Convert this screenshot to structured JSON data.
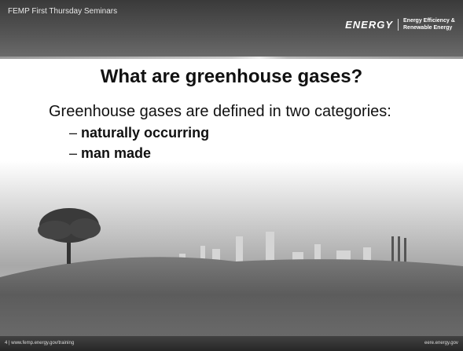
{
  "header": {
    "series_title": "FEMP First Thursday Seminars",
    "logo_main": "ENERGY",
    "logo_sub": "Energy Efficiency & Renewable Energy"
  },
  "slide": {
    "title": "What are greenhouse gases?",
    "body": "Greenhouse gases are defined in two categories:",
    "bullets": [
      {
        "marker": "–",
        "text": "naturally occurring"
      },
      {
        "marker": "–",
        "text": "man made"
      }
    ]
  },
  "footer": {
    "left": "4 | www.femp.energy.gov/training",
    "right": "eere.energy.gov"
  }
}
